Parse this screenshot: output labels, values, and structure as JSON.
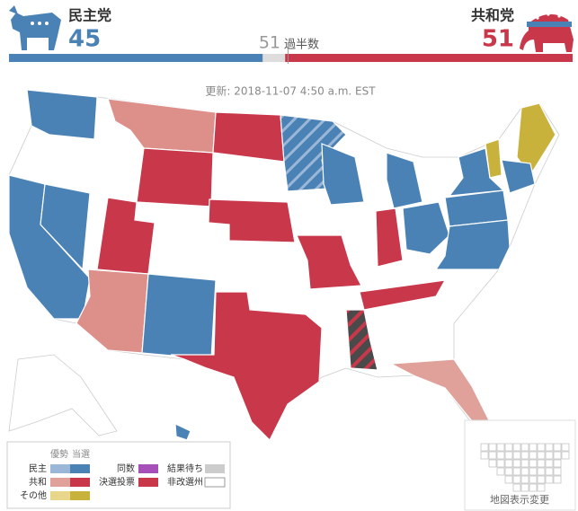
{
  "header": {
    "dem": {
      "label": "民主党",
      "seats": 45,
      "color": "#4a82b5"
    },
    "rep": {
      "label": "共和党",
      "seats": 51,
      "color": "#c8374a"
    },
    "majority": {
      "seats": 51,
      "label": "過半数"
    },
    "updated": "更新: 2018-11-07 4:50 a.m. EST"
  },
  "legend": {
    "lean": "優勢",
    "won": "当選",
    "dem": "民主",
    "rep": "共和",
    "other": "その他",
    "tie": "同数",
    "runoff": "決選投票",
    "pending": "結果待ち",
    "not_up": "非改選州"
  },
  "map_toggle": "地図表示変更"
}
